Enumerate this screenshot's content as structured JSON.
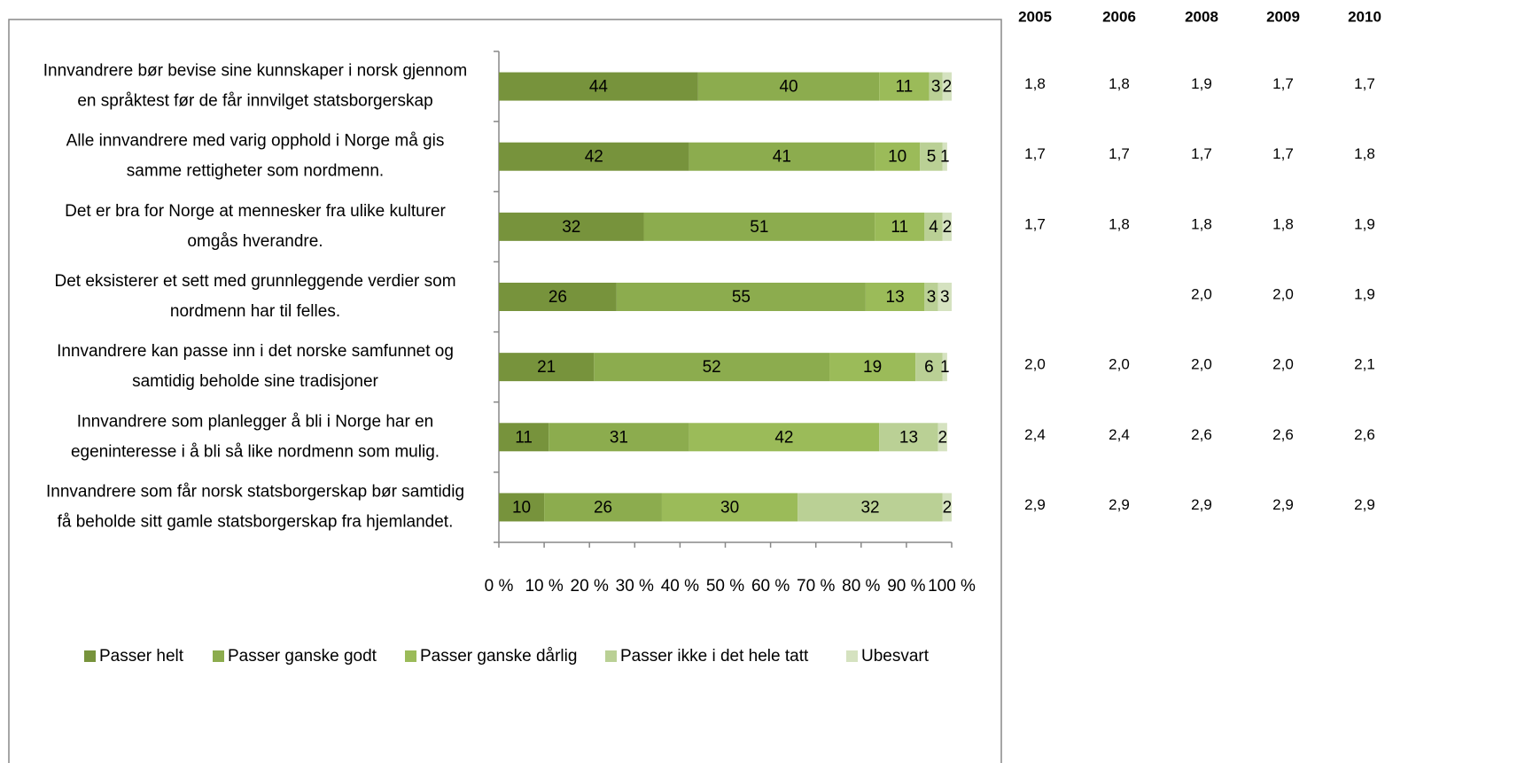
{
  "chart_data": {
    "type": "stacked_barh",
    "categories": [
      [
        "Innvandrere bør bevise sine kunnskaper  i norsk gjennom",
        "en språktest før de får innvilget statsborgerskap"
      ],
      [
        "Alle innvandrere med varig opphold  i Norge må gis",
        "samme rettigheter som nordmenn."
      ],
      [
        "Det er bra for Norge at mennesker fra ulike kulturer",
        "omgås hverandre."
      ],
      [
        "Det eksisterer et sett med grunnleggende verdier som",
        "nordmenn har til felles."
      ],
      [
        "Innvandrere kan passe inn i det norske samfunnet og",
        "samtidig beholde sine tradisjoner"
      ],
      [
        "Innvandrere som planlegger å bli i Norge har en",
        "egeninteresse i å bli så like nordmenn som mulig."
      ],
      [
        "Innvandrere som får norsk statsborgerskap bør samtidig",
        "få beholde sitt gamle statsborgerskap fra hjemlandet."
      ]
    ],
    "series": [
      {
        "name": "Passer helt",
        "color": "#77933c",
        "values": [
          44,
          42,
          32,
          26,
          21,
          11,
          10
        ]
      },
      {
        "name": "Passer ganske godt",
        "color": "#8cac4e",
        "values": [
          40,
          41,
          51,
          55,
          52,
          31,
          26
        ]
      },
      {
        "name": "Passer ganske dårlig",
        "color": "#9bbb59",
        "values": [
          11,
          10,
          11,
          13,
          19,
          42,
          30
        ]
      },
      {
        "name": "Passer ikke i det hele tatt",
        "color": "#bad095",
        "values": [
          3,
          5,
          4,
          3,
          6,
          13,
          32
        ]
      },
      {
        "name": "Ubesvart",
        "color": "#d5e2c0",
        "values": [
          2,
          1,
          2,
          3,
          1,
          2,
          2
        ]
      }
    ],
    "xlim": [
      0,
      100
    ],
    "xticks": [
      {
        "value": 0,
        "label": "0 %"
      },
      {
        "value": 10,
        "label": "10 %"
      },
      {
        "value": 20,
        "label": "20 %"
      },
      {
        "value": 30,
        "label": "30 %"
      },
      {
        "value": 40,
        "label": "40 %"
      },
      {
        "value": 50,
        "label": "50 %"
      },
      {
        "value": 60,
        "label": "60 %"
      },
      {
        "value": 70,
        "label": "70 %"
      },
      {
        "value": 80,
        "label": "80 %"
      },
      {
        "value": 90,
        "label": "90 %"
      },
      {
        "value": 100,
        "label": "100 %"
      }
    ],
    "grid": false,
    "legend": "bottom",
    "table": {
      "columns": [
        "2005",
        "2006",
        "2008",
        "2009",
        "2010"
      ],
      "rows": [
        [
          "1,8",
          "1,8",
          "1,9",
          "1,7",
          "1,7"
        ],
        [
          "1,7",
          "1,7",
          "1,7",
          "1,7",
          "1,8"
        ],
        [
          "1,7",
          "1,8",
          "1,8",
          "1,8",
          "1,9"
        ],
        [
          null,
          null,
          "2,0",
          "2,0",
          "1,9"
        ],
        [
          "2,0",
          "2,0",
          "2,0",
          "2,0",
          "2,1"
        ],
        [
          "2,4",
          "2,4",
          "2,6",
          "2,6",
          "2,6"
        ],
        [
          "2,9",
          "2,9",
          "2,9",
          "2,9",
          "2,9"
        ]
      ]
    }
  }
}
